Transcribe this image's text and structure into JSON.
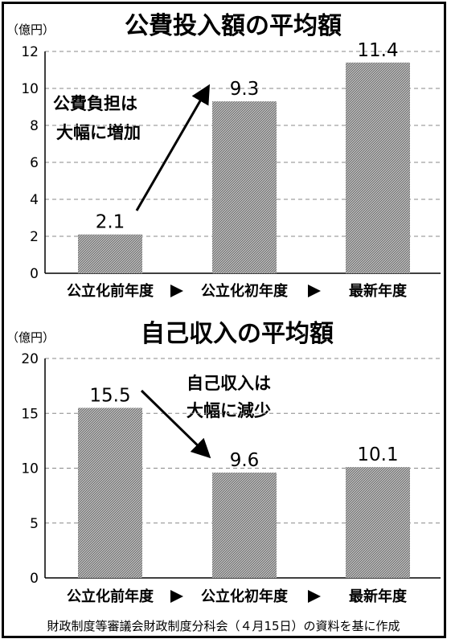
{
  "chart_data": [
    {
      "type": "bar",
      "title": "公費投入額の平均額",
      "unit": "（億円）",
      "categories": [
        "公立化前年度",
        "公立化初年度",
        "最新年度"
      ],
      "values": [
        2.1,
        9.3,
        11.4
      ],
      "value_labels": [
        "2.1",
        "9.3",
        "11.4"
      ],
      "ylim": [
        0,
        12
      ],
      "yticks": [
        "0",
        "2",
        "4",
        "6",
        "8",
        "10",
        "12"
      ],
      "grid": true,
      "annotation": [
        "公費負担は",
        "大幅に増加"
      ]
    },
    {
      "type": "bar",
      "title": "自己収入の平均額",
      "unit": "（億円）",
      "categories": [
        "公立化前年度",
        "公立化初年度",
        "最新年度"
      ],
      "values": [
        15.5,
        9.6,
        10.1
      ],
      "value_labels": [
        "15.5",
        "9.6",
        "10.1"
      ],
      "ylim": [
        0,
        20
      ],
      "yticks": [
        "0",
        "5",
        "10",
        "15",
        "20"
      ],
      "grid": true,
      "annotation": [
        "自己収入は",
        "大幅に減少"
      ]
    }
  ],
  "source": "財政制度等審議会財政制度分科会（４月15日）の資料を基に作成",
  "colors": {
    "bar_fill": "#9a9a9a",
    "grid": "#888888",
    "text": "#000000"
  }
}
